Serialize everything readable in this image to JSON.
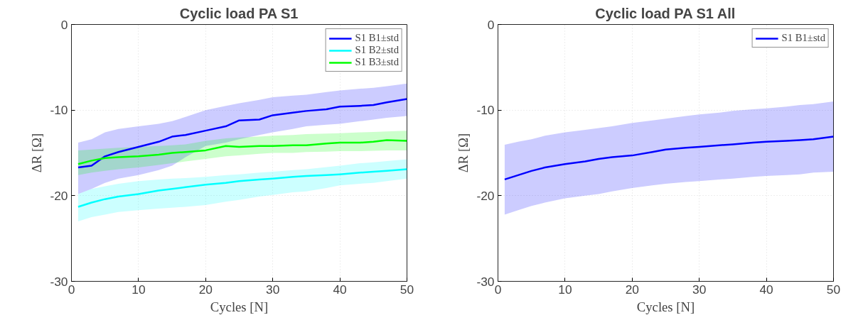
{
  "chart_data": [
    {
      "type": "line",
      "title": "Cyclic load PA S1",
      "xlabel": "Cycles [N]",
      "ylabel": "ΔR [Ω]",
      "xlim": [
        0,
        50
      ],
      "ylim": [
        -30,
        0
      ],
      "xticks": [
        0,
        10,
        20,
        30,
        40,
        50
      ],
      "yticks": [
        -30,
        -20,
        -10,
        0
      ],
      "grid": true,
      "legend": "top right",
      "x": [
        1,
        3,
        5,
        7,
        10,
        13,
        15,
        17,
        20,
        23,
        25,
        28,
        30,
        33,
        35,
        38,
        40,
        43,
        45,
        47,
        50
      ],
      "series": [
        {
          "name": "S1 B1±std",
          "color": "#0000ff",
          "values": [
            -16.7,
            -16.5,
            -15.4,
            -14.9,
            -14.3,
            -13.7,
            -13.1,
            -12.9,
            -12.4,
            -11.9,
            -11.2,
            -11.1,
            -10.6,
            -10.3,
            -10.1,
            -9.9,
            -9.6,
            -9.5,
            -9.4,
            -9.1,
            -8.7
          ],
          "upper": [
            -13.8,
            -13.4,
            -12.6,
            -12.2,
            -11.9,
            -11.6,
            -11.3,
            -10.8,
            -10.0,
            -9.5,
            -9.2,
            -8.8,
            -8.5,
            -8.3,
            -8.2,
            -7.9,
            -7.7,
            -7.5,
            -7.4,
            -7.2,
            -6.9
          ],
          "lower": [
            -19.8,
            -19.2,
            -18.5,
            -18.0,
            -17.6,
            -17.0,
            -16.5,
            -15.5,
            -14.2,
            -13.8,
            -13.4,
            -12.9,
            -12.6,
            -12.2,
            -11.9,
            -11.7,
            -11.6,
            -11.3,
            -11.1,
            -10.9,
            -10.7
          ]
        },
        {
          "name": "S1 B2±std",
          "color": "#00ffff",
          "values": [
            -21.3,
            -20.8,
            -20.4,
            -20.1,
            -19.8,
            -19.4,
            -19.2,
            -19.0,
            -18.7,
            -18.5,
            -18.3,
            -18.1,
            -18.0,
            -17.8,
            -17.7,
            -17.6,
            -17.5,
            -17.3,
            -17.2,
            -17.1,
            -16.9
          ],
          "upper": [
            -19.8,
            -19.2,
            -18.9,
            -18.6,
            -18.3,
            -18.1,
            -18.0,
            -17.95,
            -17.8,
            -17.6,
            -17.5,
            -17.3,
            -17.2,
            -17.0,
            -16.9,
            -16.65,
            -16.5,
            -16.2,
            -16.1,
            -15.95,
            -15.75
          ],
          "lower": [
            -23.0,
            -22.5,
            -22.2,
            -21.9,
            -21.7,
            -21.5,
            -21.4,
            -21.3,
            -21.1,
            -20.7,
            -20.5,
            -20.1,
            -19.9,
            -19.6,
            -19.5,
            -19.1,
            -18.8,
            -18.6,
            -18.5,
            -18.3,
            -18.0
          ]
        },
        {
          "name": "S1 B3±std",
          "color": "#00ff00",
          "values": [
            -16.3,
            -15.9,
            -15.6,
            -15.5,
            -15.4,
            -15.2,
            -15.0,
            -14.9,
            -14.7,
            -14.2,
            -14.3,
            -14.2,
            -14.2,
            -14.1,
            -14.1,
            -13.9,
            -13.8,
            -13.8,
            -13.7,
            -13.5,
            -13.6
          ],
          "upper": [
            -14.7,
            -14.6,
            -14.5,
            -14.4,
            -14.3,
            -14.2,
            -14.1,
            -14.0,
            -13.6,
            -13.3,
            -13.2,
            -13.1,
            -13.0,
            -12.9,
            -12.8,
            -12.75,
            -12.7,
            -12.6,
            -12.55,
            -12.5,
            -12.4
          ],
          "lower": [
            -17.6,
            -17.3,
            -17.1,
            -16.9,
            -16.7,
            -16.4,
            -16.2,
            -16.0,
            -15.7,
            -15.4,
            -15.3,
            -15.1,
            -15.0,
            -15.0,
            -14.9,
            -14.85,
            -14.8,
            -14.8,
            -14.75,
            -14.7,
            -14.7
          ]
        }
      ]
    },
    {
      "type": "line",
      "title": "Cyclic load PA S1 All",
      "xlabel": "Cycles [N]",
      "ylabel": "ΔR [Ω]",
      "xlim": [
        0,
        50
      ],
      "ylim": [
        -30,
        0
      ],
      "xticks": [
        0,
        10,
        20,
        30,
        40,
        50
      ],
      "yticks": [
        -30,
        -20,
        -10,
        0
      ],
      "grid": true,
      "legend": "top right",
      "x": [
        1,
        3,
        5,
        7,
        10,
        13,
        15,
        17,
        20,
        23,
        25,
        28,
        30,
        33,
        35,
        38,
        40,
        43,
        45,
        47,
        50
      ],
      "series": [
        {
          "name": "S1 B1±std",
          "color": "#0000ff",
          "values": [
            -18.1,
            -17.6,
            -17.1,
            -16.7,
            -16.3,
            -16.0,
            -15.7,
            -15.5,
            -15.3,
            -14.9,
            -14.6,
            -14.4,
            -14.3,
            -14.1,
            -14.0,
            -13.8,
            -13.7,
            -13.6,
            -13.5,
            -13.4,
            -13.1
          ],
          "upper": [
            -14.05,
            -13.7,
            -13.4,
            -13.0,
            -12.6,
            -12.3,
            -12.1,
            -11.9,
            -11.5,
            -11.2,
            -11.0,
            -10.7,
            -10.5,
            -10.3,
            -10.1,
            -9.9,
            -9.8,
            -9.6,
            -9.4,
            -9.3,
            -9.0
          ],
          "lower": [
            -22.2,
            -21.7,
            -21.2,
            -20.8,
            -20.3,
            -20.0,
            -19.8,
            -19.5,
            -19.1,
            -18.8,
            -18.6,
            -18.4,
            -18.3,
            -18.1,
            -18.0,
            -17.8,
            -17.7,
            -17.6,
            -17.5,
            -17.3,
            -17.2
          ]
        }
      ]
    }
  ]
}
